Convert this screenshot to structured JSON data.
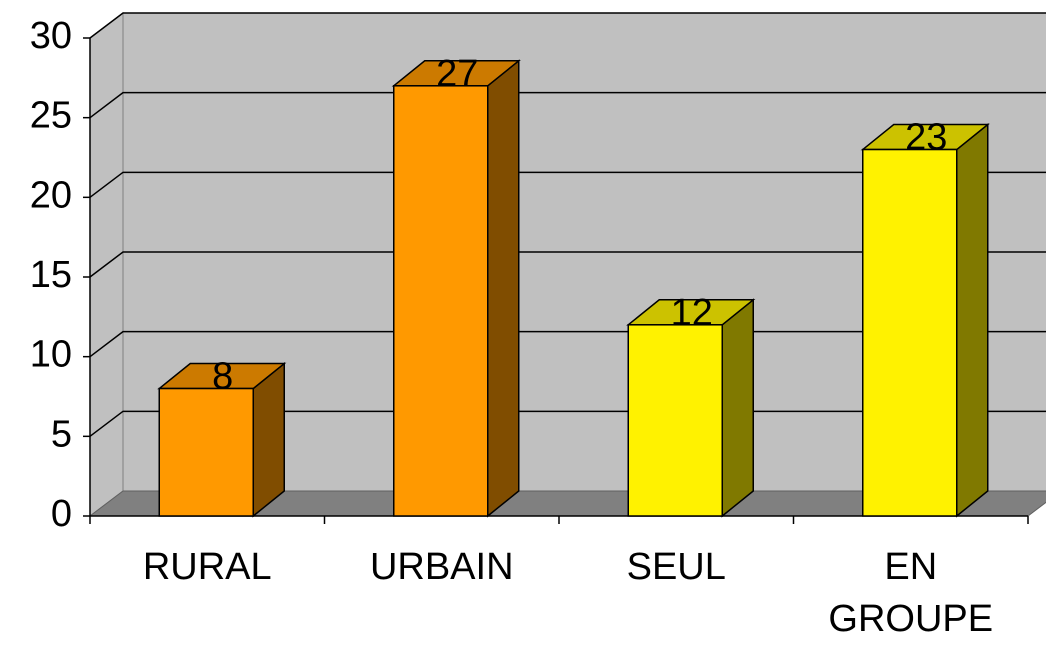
{
  "chart_data": {
    "type": "bar3d",
    "categories": [
      "RURAL",
      "URBAIN",
      "SEUL",
      "EN GROUPE"
    ],
    "values": [
      8,
      27,
      12,
      23
    ],
    "colors": [
      "#ff9900",
      "#ff9900",
      "#fff200",
      "#fff200"
    ],
    "ylim": [
      0,
      30
    ],
    "yticks": [
      0,
      5,
      10,
      15,
      20,
      25,
      30
    ],
    "grid": true
  }
}
